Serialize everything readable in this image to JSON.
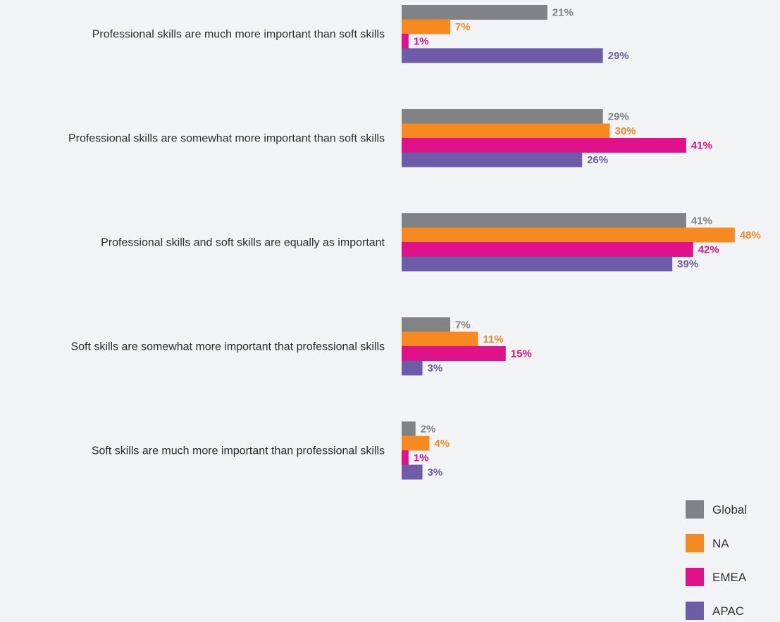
{
  "chart_data": {
    "type": "bar",
    "orientation": "horizontal",
    "categories": [
      "Professional skills are much more important than soft skills",
      "Professional skills are somewhat more important than soft skills",
      "Professional skills and soft skills are equally as important",
      "Soft skills are somewhat more important that professional skills",
      "Soft skills are much more important than professional skills"
    ],
    "series": [
      {
        "name": "Global",
        "color": "#808285",
        "values": [
          21,
          29,
          41,
          7,
          2
        ],
        "labels": [
          "21%",
          "29%",
          "41%",
          "7%",
          "2%"
        ]
      },
      {
        "name": "NA",
        "color": "#f6891f",
        "values": [
          7,
          30,
          48,
          11,
          4
        ],
        "labels": [
          "7%",
          "30%",
          "48%",
          "11%",
          "4%"
        ]
      },
      {
        "name": "EMEA",
        "color": "#e0118a",
        "values": [
          1,
          41,
          42,
          15,
          1
        ],
        "labels": [
          "1%",
          "41%",
          "42%",
          "15%",
          "1%"
        ]
      },
      {
        "name": "APAC",
        "color": "#6e5ca8",
        "values": [
          29,
          26,
          39,
          3,
          3
        ],
        "labels": [
          "29%",
          "26%",
          "39%",
          "3%",
          "3%"
        ]
      }
    ],
    "unit": "%",
    "xlim": [
      0,
      48
    ],
    "grid": false,
    "legend_position": "bottom-right"
  }
}
